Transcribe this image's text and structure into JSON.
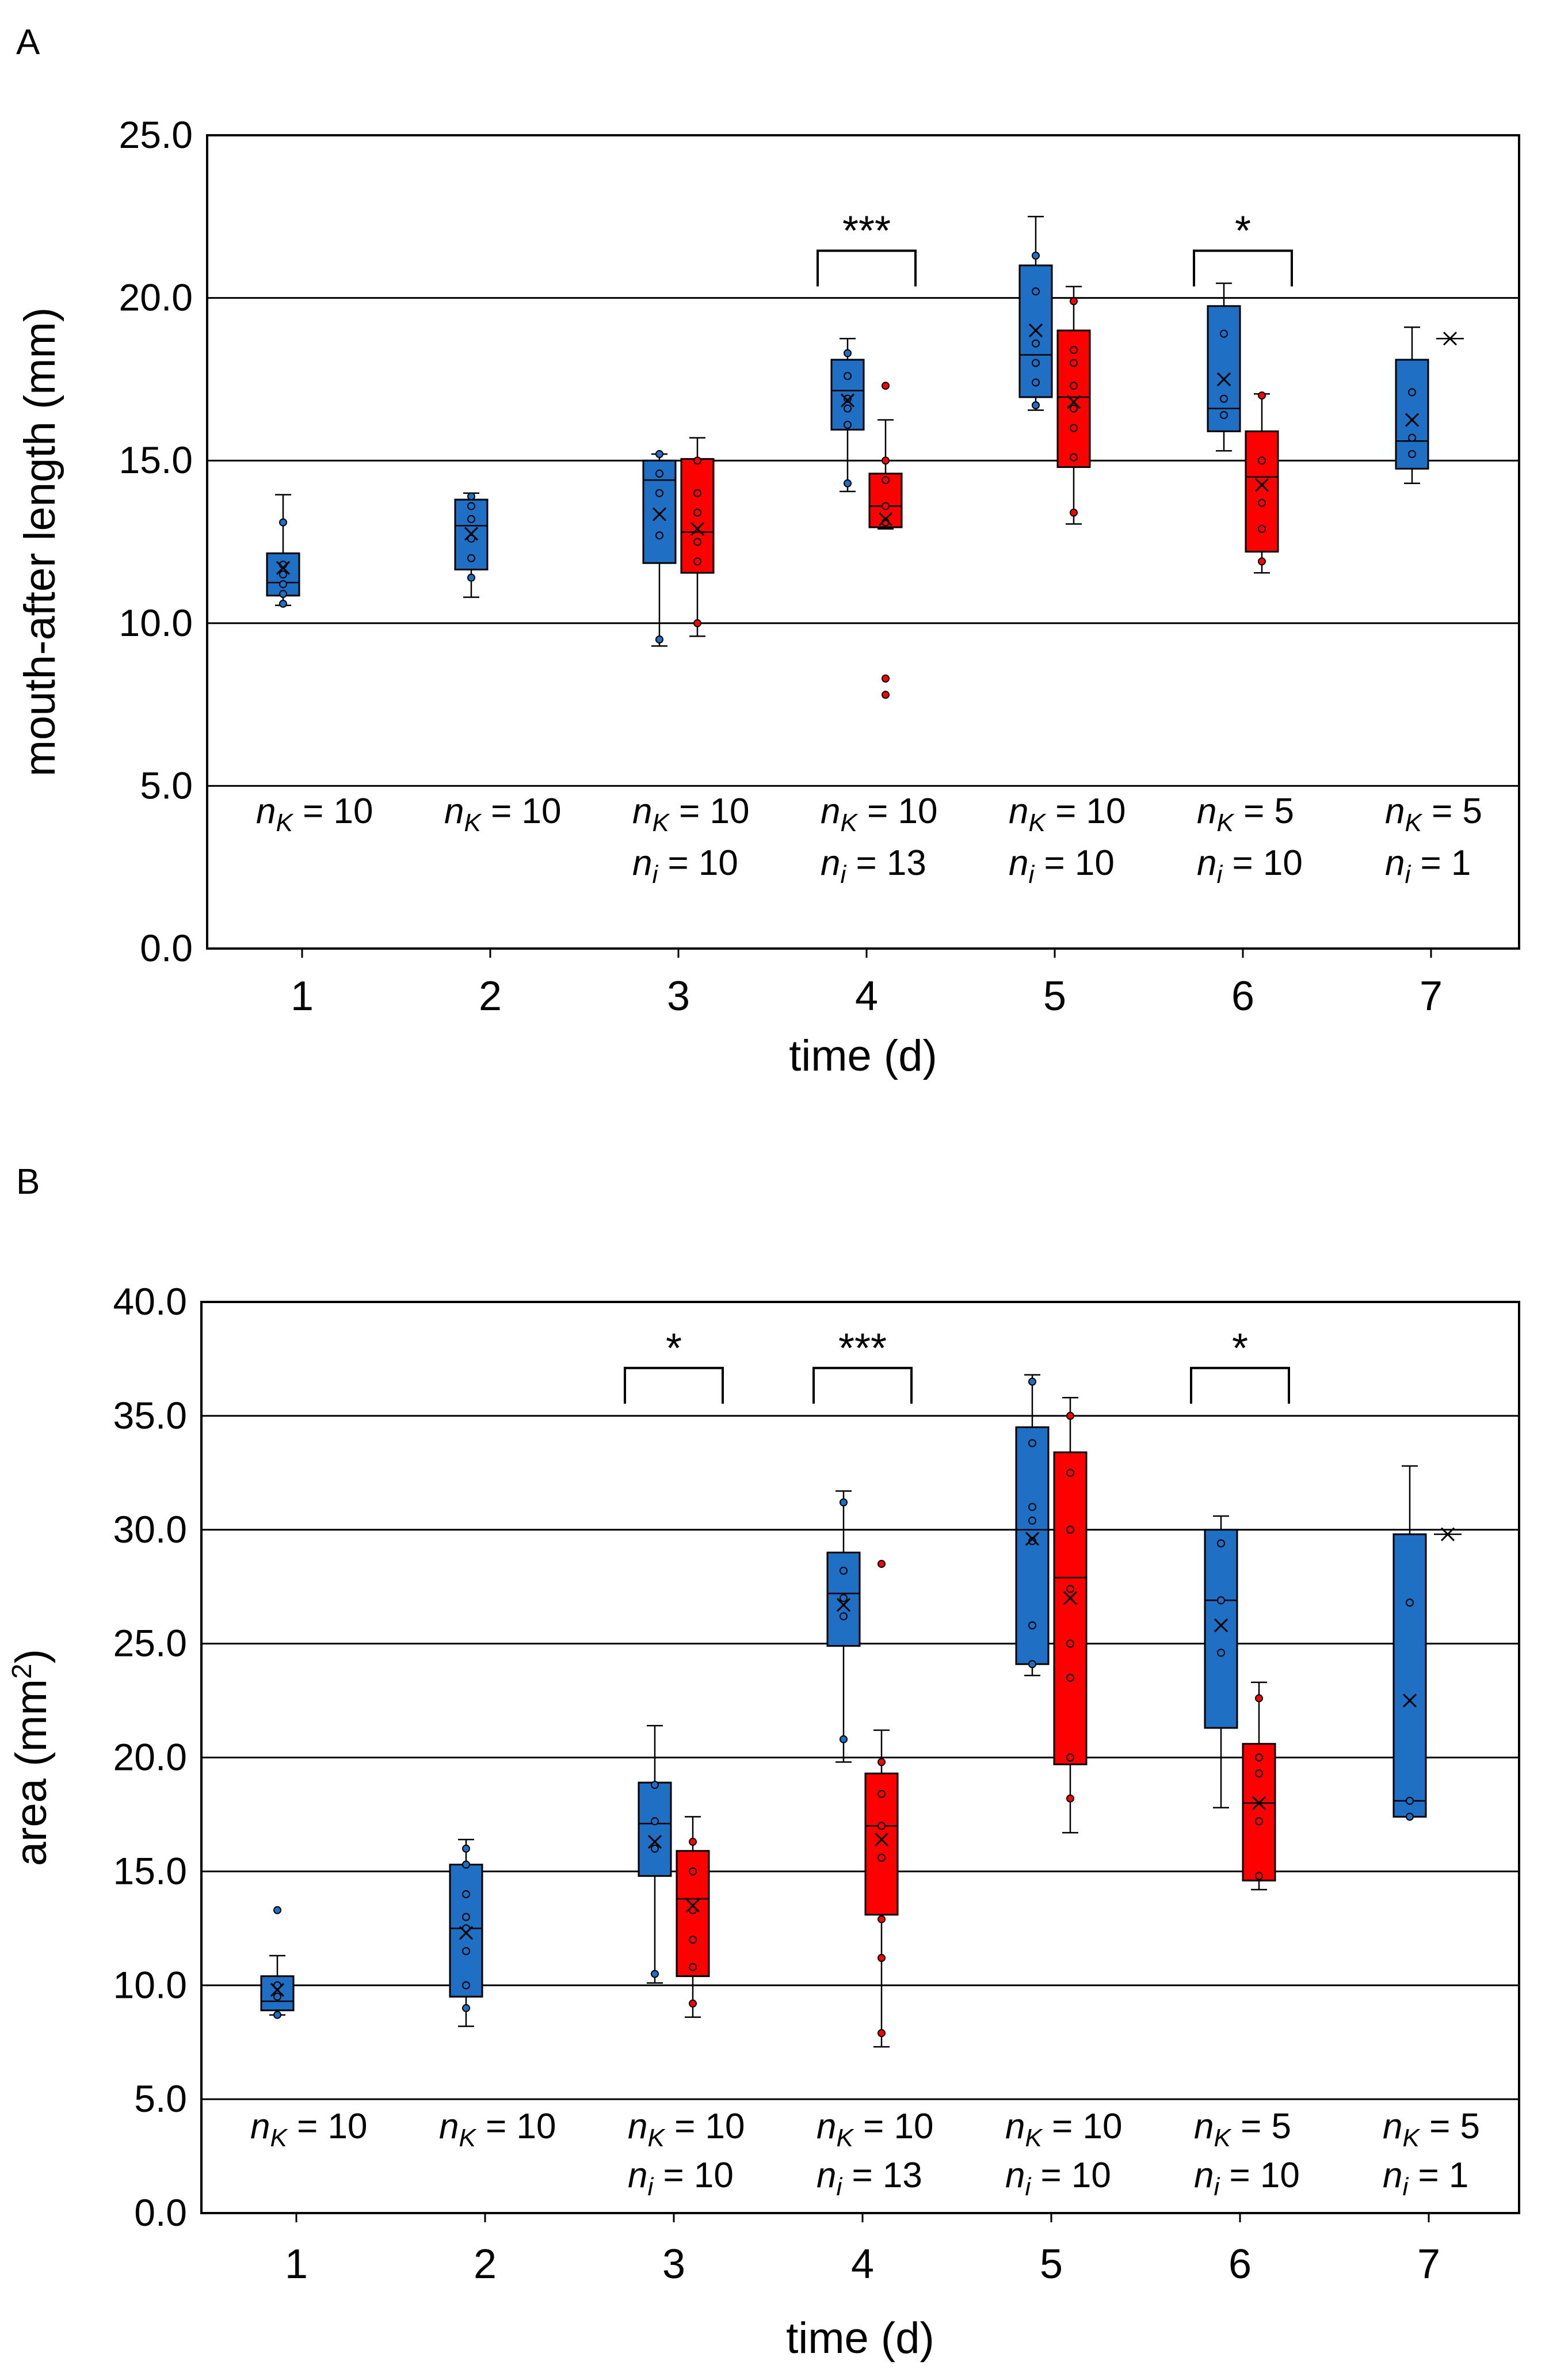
{
  "panels": [
    {
      "letter": "A"
    },
    {
      "letter": "B"
    }
  ],
  "colors": {
    "group_K": "#1f6fc4",
    "group_i": "#ff0000",
    "outline": "#000000",
    "grid": "#000000"
  },
  "chart_data": [
    {
      "type": "box",
      "panel": "A",
      "title": "",
      "xlabel": "time (d)",
      "ylabel": "mouth-after length (mm)",
      "ylim": [
        0,
        25
      ],
      "yticks": [
        "0.0",
        "5.0",
        "10.0",
        "15.0",
        "20.0",
        "25.0"
      ],
      "ytick_values": [
        0,
        5,
        10,
        15,
        20,
        25
      ],
      "categories": [
        "1",
        "2",
        "3",
        "4",
        "5",
        "6",
        "7"
      ],
      "grid": true,
      "series": [
        {
          "name": "K",
          "color": "#1f6fc4",
          "boxes": [
            {
              "day": 1,
              "q1": 10.85,
              "median": 11.25,
              "q3": 12.15,
              "min": 10.55,
              "max": 13.95,
              "mean": 11.7,
              "points": [
                10.6,
                10.9,
                11.2,
                11.5,
                11.8,
                13.1
              ]
            },
            {
              "day": 2,
              "q1": 11.65,
              "median": 13.0,
              "q3": 13.8,
              "min": 10.8,
              "max": 14.0,
              "mean": 12.75,
              "points": [
                11.4,
                12.0,
                12.6,
                13.2,
                13.6,
                13.9
              ]
            },
            {
              "day": 3,
              "q1": 11.85,
              "median": 14.4,
              "q3": 15.0,
              "min": 9.3,
              "max": 15.2,
              "mean": 13.35,
              "points": [
                9.5,
                12.7,
                14.0,
                14.6,
                15.2
              ]
            },
            {
              "day": 4,
              "q1": 15.95,
              "median": 17.15,
              "q3": 18.1,
              "min": 14.05,
              "max": 18.75,
              "mean": 16.85,
              "points": [
                14.3,
                16.1,
                16.6,
                16.9,
                17.6,
                18.3
              ]
            },
            {
              "day": 5,
              "q1": 16.95,
              "median": 18.25,
              "q3": 21.0,
              "min": 16.55,
              "max": 22.5,
              "mean": 19.0,
              "points": [
                16.7,
                17.4,
                18.0,
                18.6,
                20.2,
                21.3
              ]
            },
            {
              "day": 6,
              "q1": 15.9,
              "median": 16.6,
              "q3": 19.75,
              "min": 15.3,
              "max": 20.45,
              "mean": 17.5,
              "points": [
                16.4,
                16.9,
                18.9
              ]
            },
            {
              "day": 7,
              "q1": 14.75,
              "median": 15.6,
              "q3": 18.1,
              "min": 14.3,
              "max": 19.1,
              "mean": 16.25,
              "points": [
                15.2,
                15.7,
                17.1
              ]
            }
          ]
        },
        {
          "name": "i",
          "color": "#ff0000",
          "boxes": [
            {
              "day": 3,
              "q1": 11.55,
              "median": 12.8,
              "q3": 15.05,
              "min": 9.6,
              "max": 15.7,
              "mean": 12.9,
              "points": [
                10.0,
                11.9,
                12.5,
                13.4,
                14.0,
                15.0
              ]
            },
            {
              "day": 4,
              "q1": 12.95,
              "median": 13.6,
              "q3": 14.6,
              "min": 12.9,
              "max": 16.25,
              "mean": 13.2,
              "points": [
                7.8,
                8.3,
                13.1,
                13.6,
                14.4,
                15.0,
                17.3
              ]
            },
            {
              "day": 5,
              "q1": 14.8,
              "median": 16.95,
              "q3": 19.0,
              "min": 13.05,
              "max": 20.35,
              "mean": 16.8,
              "points": [
                13.4,
                15.1,
                16.0,
                16.6,
                17.3,
                18.0,
                18.4,
                19.9
              ]
            },
            {
              "day": 6,
              "q1": 12.2,
              "median": 14.5,
              "q3": 15.9,
              "min": 11.55,
              "max": 17.05,
              "mean": 14.25,
              "points": [
                11.9,
                12.9,
                13.7,
                15.0,
                17.0
              ]
            },
            {
              "day": 7,
              "mean": 18.75
            }
          ]
        }
      ],
      "significance": [
        {
          "day": 4,
          "label": "***",
          "y": 21.45
        },
        {
          "day": 6,
          "label": "*",
          "y": 21.45
        }
      ],
      "n_labels": [
        {
          "nK": "= 10",
          "ni": ""
        },
        {
          "nK": "= 10",
          "ni": ""
        },
        {
          "nK": "= 10",
          "ni": "  = 10"
        },
        {
          "nK": "= 10",
          "ni": "  = 13"
        },
        {
          "nK": "= 10",
          "ni": "  = 10"
        },
        {
          "nK": "=  5",
          "ni": "  = 10"
        },
        {
          "nK": "=  5",
          "ni": "  =  1"
        }
      ]
    },
    {
      "type": "box",
      "panel": "B",
      "title": "",
      "xlabel": "time (d)",
      "ylabel": "area (mm",
      "ylabel_sup": "2",
      "ylabel_end": ")",
      "ylim": [
        0,
        40
      ],
      "yticks": [
        "0.0",
        "5.0",
        "10.0",
        "15.0",
        "20.0",
        "25.0",
        "30.0",
        "35.0",
        "40.0"
      ],
      "ytick_values": [
        0,
        5,
        10,
        15,
        20,
        25,
        30,
        35,
        40
      ],
      "categories": [
        "1",
        "2",
        "3",
        "4",
        "5",
        "6",
        "7"
      ],
      "grid": true,
      "series": [
        {
          "name": "K",
          "color": "#1f6fc4",
          "boxes": [
            {
              "day": 1,
              "q1": 8.9,
              "median": 9.3,
              "q3": 10.4,
              "min": 8.7,
              "max": 11.3,
              "mean": 9.8,
              "points": [
                8.7,
                9.5,
                10.0,
                13.3
              ]
            },
            {
              "day": 2,
              "q1": 9.5,
              "median": 12.5,
              "q3": 15.3,
              "min": 8.2,
              "max": 16.4,
              "mean": 12.3,
              "points": [
                9.0,
                10.0,
                11.5,
                12.5,
                13.0,
                14.0,
                15.3,
                16.0
              ]
            },
            {
              "day": 3,
              "q1": 14.8,
              "median": 17.1,
              "q3": 18.9,
              "min": 10.1,
              "max": 21.4,
              "mean": 16.3,
              "points": [
                10.5,
                16.0,
                17.2,
                18.8
              ]
            },
            {
              "day": 4,
              "q1": 24.9,
              "median": 27.2,
              "q3": 29.0,
              "min": 19.8,
              "max": 31.7,
              "mean": 26.7,
              "points": [
                20.8,
                26.2,
                27.0,
                28.2,
                31.2
              ]
            },
            {
              "day": 5,
              "q1": 24.1,
              "median": 30.0,
              "q3": 34.5,
              "min": 23.6,
              "max": 36.8,
              "mean": 29.6,
              "points": [
                24.1,
                25.8,
                29.5,
                30.4,
                31.0,
                33.8,
                36.5
              ]
            },
            {
              "day": 6,
              "q1": 21.3,
              "median": 26.9,
              "q3": 30.0,
              "min": 17.8,
              "max": 30.6,
              "mean": 25.8,
              "points": [
                24.6,
                26.9,
                29.4
              ]
            },
            {
              "day": 7,
              "q1": 17.4,
              "median": 18.1,
              "q3": 29.8,
              "min": 17.4,
              "max": 32.8,
              "mean": 22.5,
              "points": [
                17.4,
                18.1,
                26.8
              ]
            }
          ]
        },
        {
          "name": "i",
          "color": "#ff0000",
          "boxes": [
            {
              "day": 3,
              "q1": 10.4,
              "median": 13.8,
              "q3": 15.9,
              "min": 8.6,
              "max": 17.4,
              "mean": 13.5,
              "points": [
                9.2,
                10.8,
                12.0,
                13.3,
                15.0,
                16.3
              ]
            },
            {
              "day": 4,
              "q1": 13.1,
              "median": 17.0,
              "q3": 19.3,
              "min": 7.3,
              "max": 21.2,
              "mean": 16.4,
              "points": [
                7.9,
                11.2,
                12.9,
                15.6,
                17.0,
                18.4,
                19.8,
                28.5
              ]
            },
            {
              "day": 5,
              "q1": 19.7,
              "median": 27.9,
              "q3": 33.4,
              "min": 16.7,
              "max": 35.8,
              "mean": 27.0,
              "points": [
                18.2,
                20.0,
                23.5,
                25.0,
                27.4,
                30.0,
                32.5,
                35.0
              ]
            },
            {
              "day": 6,
              "q1": 14.6,
              "median": 18.0,
              "q3": 20.6,
              "min": 14.2,
              "max": 23.3,
              "mean": 18.0,
              "points": [
                14.8,
                17.2,
                19.3,
                20.0,
                22.6
              ]
            },
            {
              "day": 7,
              "mean": 29.8
            }
          ]
        }
      ],
      "significance": [
        {
          "day": 3,
          "label": "*",
          "y": 37.1
        },
        {
          "day": 4,
          "label": "***",
          "y": 37.1
        },
        {
          "day": 6,
          "label": "*",
          "y": 37.1
        }
      ],
      "n_labels": [
        {
          "nK": "= 10",
          "ni": ""
        },
        {
          "nK": "= 10",
          "ni": ""
        },
        {
          "nK": "= 10",
          "ni": "  = 10"
        },
        {
          "nK": "= 10",
          "ni": "  = 13"
        },
        {
          "nK": "= 10",
          "ni": "  = 10"
        },
        {
          "nK": "=  5",
          "ni": "  = 10"
        },
        {
          "nK": "=  5",
          "ni": "  =  1"
        }
      ]
    }
  ]
}
